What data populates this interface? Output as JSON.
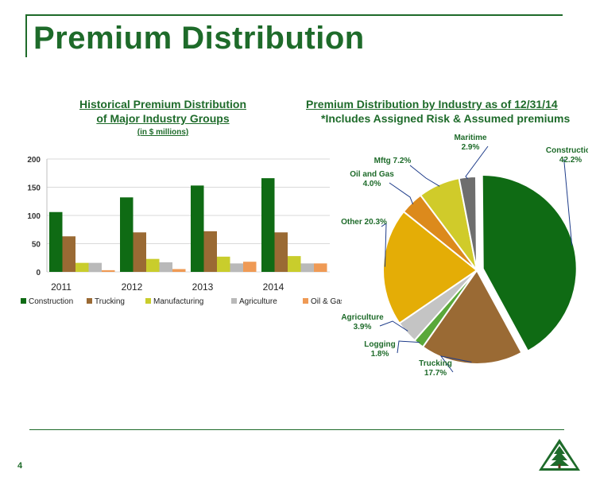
{
  "page": {
    "title": "Premium Distribution",
    "page_number": "4"
  },
  "bar_chart": {
    "title_line1": "Historical Premium Distribution",
    "title_line2": "of Major Industry Groups",
    "subtitle": "(in $ millions)"
  },
  "pie_chart": {
    "title": "Premium Distribution by Industry as of 12/31/14",
    "subtitle": "*Includes Assigned Risk & Assumed premiums"
  },
  "colors": {
    "brand_green": "#1e6b2a"
  },
  "logo": {
    "icon": "pine-tree-triangle-logo"
  },
  "chart_data": [
    {
      "type": "bar",
      "categories": [
        "2011",
        "2012",
        "2013",
        "2014"
      ],
      "series": [
        {
          "name": "Construction",
          "values": [
            106,
            132,
            153,
            166
          ],
          "color": "#0f6b14"
        },
        {
          "name": "Trucking",
          "values": [
            63,
            70,
            72,
            70
          ],
          "color": "#9a6a34"
        },
        {
          "name": "Manufacturing",
          "values": [
            16,
            23,
            27,
            28
          ],
          "color": "#c9cd2c"
        },
        {
          "name": "Agriculture",
          "values": [
            16,
            17,
            15,
            15
          ],
          "color": "#b9b9b9"
        },
        {
          "name": "Oil & Gas",
          "values": [
            3,
            5,
            18,
            15
          ],
          "color": "#ef9a55"
        }
      ],
      "ylim": [
        0,
        200
      ],
      "yticks": [
        "0",
        "50",
        "100",
        "150",
        "200"
      ],
      "grid": true,
      "legend": "bottom"
    },
    {
      "type": "pie",
      "slices": [
        {
          "label": "Construction",
          "pct": "42.2%",
          "value": 42.2,
          "color": "#0f6b14",
          "exploded": true
        },
        {
          "label": "Trucking",
          "pct": "17.7%",
          "value": 17.7,
          "color": "#9a6a34"
        },
        {
          "label": "Logging",
          "pct": "1.8%",
          "value": 1.8,
          "color": "#5aa83a"
        },
        {
          "label": "Agriculture",
          "pct": "3.9%",
          "value": 3.9,
          "color": "#c4c4c4"
        },
        {
          "label": "Other",
          "pct": "20.3%",
          "value": 20.3,
          "color": "#e4ad06"
        },
        {
          "label": "Oil and Gas",
          "pct": "4.0%",
          "value": 4.0,
          "color": "#dc8a1c"
        },
        {
          "label": "Mftg",
          "pct": "7.2%",
          "value": 7.2,
          "color": "#d0cb2a"
        },
        {
          "label": "Maritime",
          "pct": "2.9%",
          "value": 2.9,
          "color": "#6e6e6e"
        }
      ],
      "legend": "none"
    }
  ]
}
